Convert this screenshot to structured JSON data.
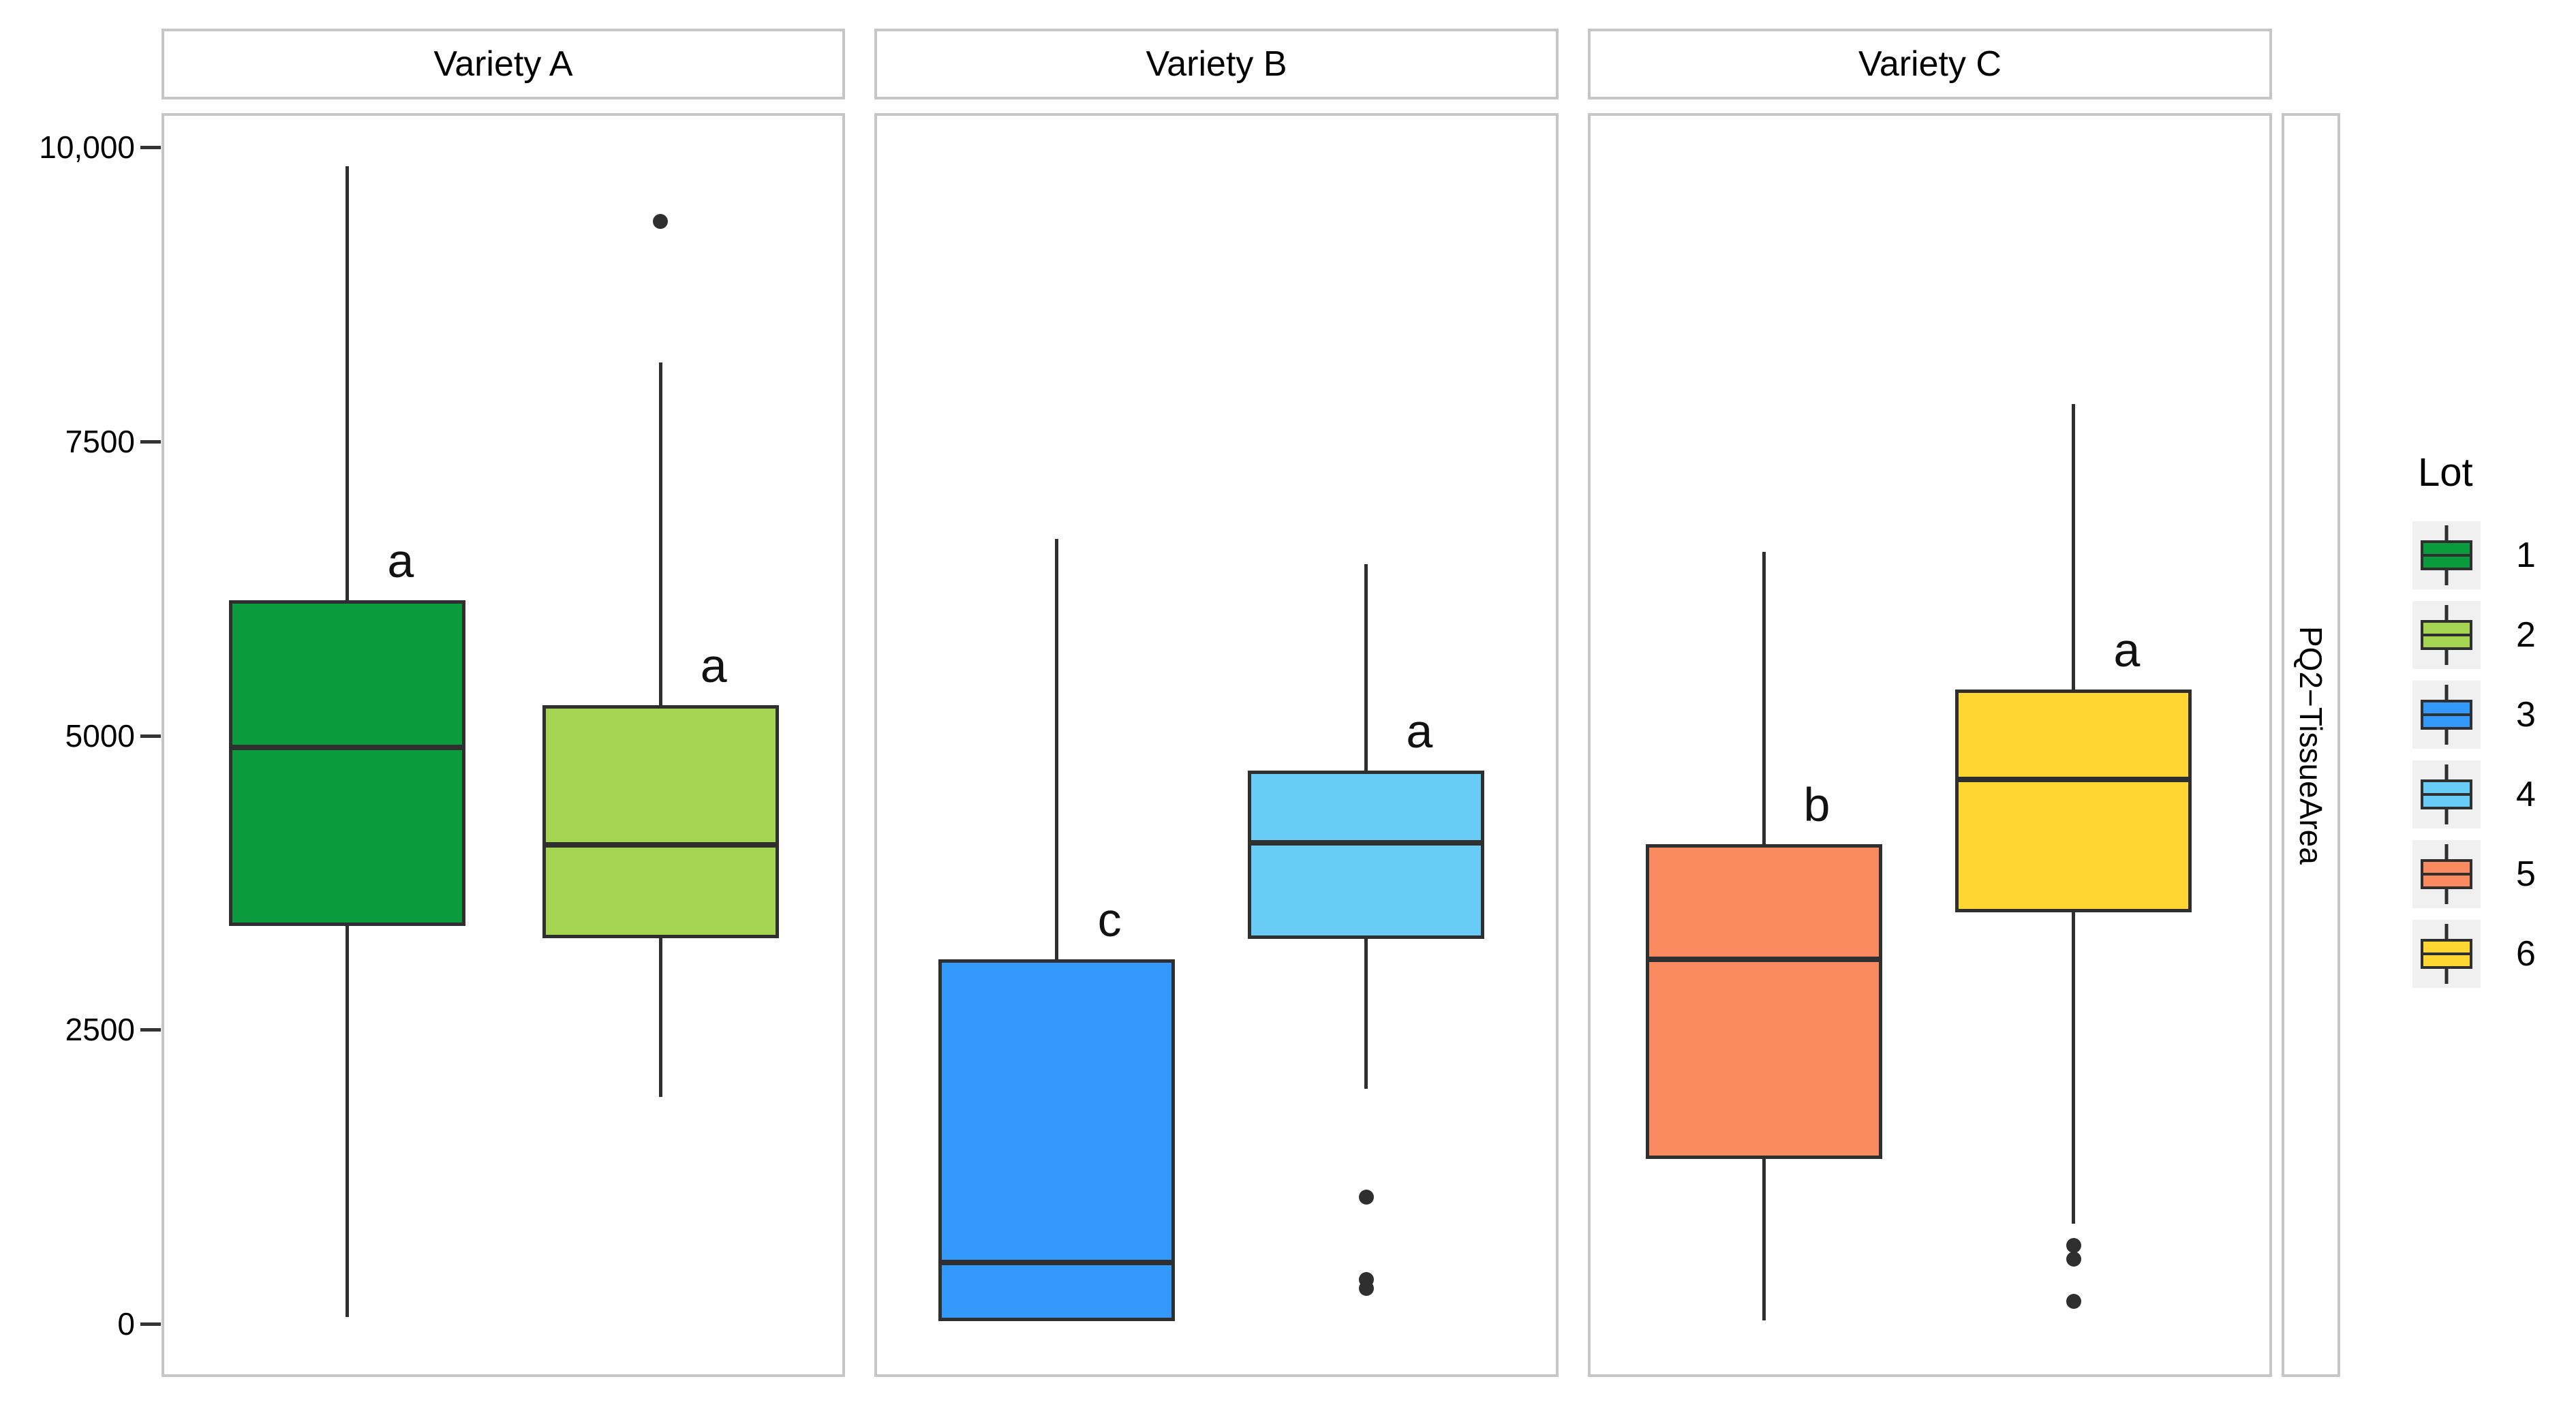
{
  "chart_data": {
    "type": "boxplot",
    "title": "",
    "faceted_by": "Variety",
    "grid": false,
    "y_axis": {
      "label": "",
      "tick_labels": [
        "10,000",
        "7500",
        "5000",
        "2500",
        "0"
      ],
      "tick_values": [
        10000,
        7500,
        5000,
        2500,
        0
      ],
      "domain_min": -450,
      "domain_max": 10290
    },
    "right_strip_label": "PQ2−TissueArea",
    "facets": [
      {
        "label": "Variety A",
        "boxes": [
          {
            "lot": "1",
            "fill": "#0A9C3C",
            "letter": "a",
            "pos": 0.272,
            "whisker_low": 60,
            "q1": 3380,
            "median": 4900,
            "q3": 6150,
            "whisker_high": 9840,
            "outliers": []
          },
          {
            "lot": "2",
            "fill": "#A5D352",
            "letter": "a",
            "pos": 0.73,
            "whisker_low": 1930,
            "q1": 3280,
            "median": 4070,
            "q3": 5260,
            "whisker_high": 8170,
            "outliers": [
              9370
            ]
          }
        ]
      },
      {
        "label": "Variety B",
        "boxes": [
          {
            "lot": "3",
            "fill": "#3399FB",
            "letter": "c",
            "pos": 0.266,
            "whisker_low": null,
            "q1": 25,
            "median": 525,
            "q3": 3100,
            "whisker_high": 6670,
            "outliers": []
          },
          {
            "lot": "4",
            "fill": "#68CCF6",
            "letter": "a",
            "pos": 0.719,
            "whisker_low": 2000,
            "q1": 3275,
            "median": 4090,
            "q3": 4705,
            "whisker_high": 6460,
            "outliers": [
              1080,
              380,
              300
            ]
          }
        ]
      },
      {
        "label": "Variety C",
        "boxes": [
          {
            "lot": "5",
            "fill": "#FA8A60",
            "letter": "b",
            "pos": 0.257,
            "whisker_low": 30,
            "q1": 1400,
            "median": 3100,
            "q3": 4080,
            "whisker_high": 6560,
            "outliers": []
          },
          {
            "lot": "6",
            "fill": "#FFD632",
            "letter": "a",
            "pos": 0.71,
            "whisker_low": 850,
            "q1": 3500,
            "median": 4630,
            "q3": 5390,
            "whisker_high": 7820,
            "outliers": [
              670,
              550,
              190
            ]
          }
        ]
      }
    ],
    "legend": {
      "title": "Lot",
      "position": "right",
      "items": [
        {
          "label": "1",
          "fill": "#0A9C3C"
        },
        {
          "label": "2",
          "fill": "#A5D352"
        },
        {
          "label": "3",
          "fill": "#3399FB"
        },
        {
          "label": "4",
          "fill": "#68CCF6"
        },
        {
          "label": "5",
          "fill": "#FA8A60"
        },
        {
          "label": "6",
          "fill": "#FFD632"
        }
      ]
    },
    "style": {
      "box_border": "#2F2F2F",
      "panel_border": "#C6C6C6",
      "legend_key_bg": "#F0F0F0",
      "text_color": "#000000"
    }
  }
}
